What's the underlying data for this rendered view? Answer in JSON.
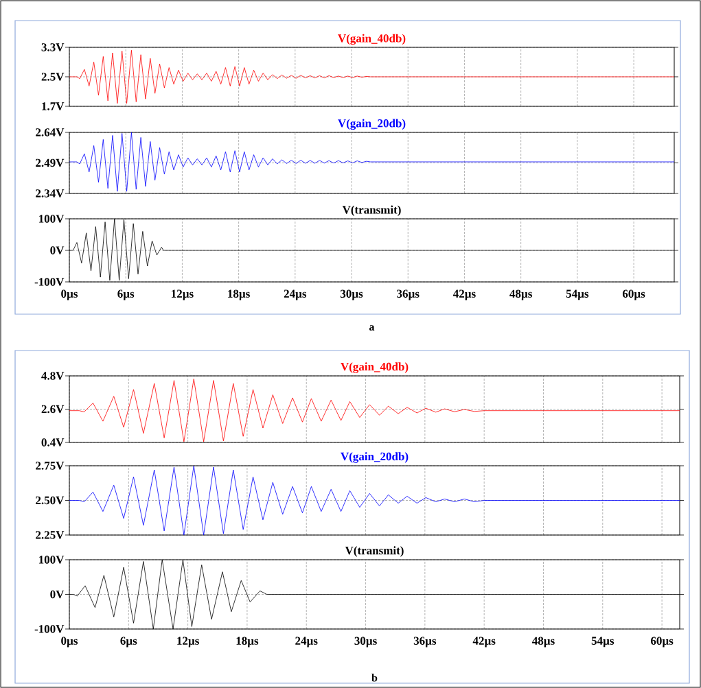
{
  "chart_data": [
    {
      "type": "line",
      "xlim": [
        0,
        64.3
      ],
      "ylim": [
        1.7,
        3.3
      ],
      "grid": true,
      "tick_labels": "y",
      "xticks": [
        {
          "value": 0,
          "label": null
        },
        {
          "value": 6,
          "label": null
        },
        {
          "value": 12,
          "label": null
        },
        {
          "value": 18,
          "label": null
        },
        {
          "value": 24,
          "label": null
        },
        {
          "value": 30,
          "label": null
        },
        {
          "value": 36,
          "label": null
        },
        {
          "value": 42,
          "label": null
        },
        {
          "value": 48,
          "label": null
        },
        {
          "value": 54,
          "label": null
        },
        {
          "value": 60,
          "label": null
        }
      ],
      "yticks": [
        {
          "value": 1.7,
          "label": "1.7V"
        },
        {
          "value": 2.5,
          "label": "2.5V"
        },
        {
          "value": 3.3,
          "label": "3.3V"
        }
      ],
      "series": [
        {
          "name": "V(gain_40db)",
          "color": "#ff0000",
          "x": [
            0,
            0.8,
            1.1,
            1.6,
            2.1,
            2.6,
            3.1,
            3.6,
            4.1,
            4.6,
            5.1,
            5.6,
            6.1,
            6.6,
            7.1,
            7.6,
            8.1,
            8.6,
            9.1,
            9.6,
            10.1,
            10.6,
            11.1,
            11.6,
            12.1,
            12.6,
            13.1,
            13.6,
            14.1,
            14.6,
            15.1,
            15.6,
            16.1,
            16.6,
            17.1,
            17.6,
            18.1,
            18.6,
            19.1,
            19.6,
            20.1,
            20.6,
            21.1,
            21.6,
            22.1,
            22.6,
            23.1,
            23.6,
            24.1,
            24.6,
            25.1,
            25.6,
            26.1,
            26.6,
            27.1,
            27.6,
            28.1,
            28.6,
            29.1,
            29.6,
            30.1,
            30.6,
            31.1,
            31.6,
            32,
            64.3
          ],
          "values": [
            2.5,
            2.5,
            2.45,
            2.7,
            2.25,
            2.9,
            2.0,
            3.05,
            1.85,
            3.15,
            1.78,
            3.2,
            1.78,
            3.22,
            1.82,
            3.1,
            1.9,
            3.0,
            2.05,
            2.85,
            2.2,
            2.75,
            2.3,
            2.68,
            2.38,
            2.6,
            2.42,
            2.58,
            2.42,
            2.6,
            2.38,
            2.65,
            2.3,
            2.75,
            2.25,
            2.78,
            2.25,
            2.75,
            2.3,
            2.68,
            2.38,
            2.6,
            2.42,
            2.56,
            2.45,
            2.55,
            2.46,
            2.54,
            2.46,
            2.54,
            2.47,
            2.53,
            2.47,
            2.53,
            2.47,
            2.53,
            2.48,
            2.52,
            2.48,
            2.52,
            2.48,
            2.52,
            2.49,
            2.51,
            2.5,
            2.5
          ]
        }
      ]
    },
    {
      "type": "line",
      "xlim": [
        0,
        64.3
      ],
      "ylim": [
        2.34,
        2.64
      ],
      "grid": true,
      "tick_labels": "y",
      "xticks": [
        {
          "value": 0,
          "label": null
        },
        {
          "value": 6,
          "label": null
        },
        {
          "value": 12,
          "label": null
        },
        {
          "value": 18,
          "label": null
        },
        {
          "value": 24,
          "label": null
        },
        {
          "value": 30,
          "label": null
        },
        {
          "value": 36,
          "label": null
        },
        {
          "value": 42,
          "label": null
        },
        {
          "value": 48,
          "label": null
        },
        {
          "value": 54,
          "label": null
        },
        {
          "value": 60,
          "label": null
        }
      ],
      "yticks": [
        {
          "value": 2.34,
          "label": "2.34V"
        },
        {
          "value": 2.49,
          "label": "2.49V"
        },
        {
          "value": 2.64,
          "label": "2.64V"
        }
      ],
      "series": [
        {
          "name": "V(gain_20db)",
          "color": "#0000ff",
          "x": [
            0,
            0.8,
            1.1,
            1.6,
            2.1,
            2.6,
            3.1,
            3.6,
            4.1,
            4.6,
            5.1,
            5.6,
            6.1,
            6.6,
            7.1,
            7.6,
            8.1,
            8.6,
            9.1,
            9.6,
            10.1,
            10.6,
            11.1,
            11.6,
            12.1,
            12.6,
            13.1,
            13.6,
            14.1,
            14.6,
            15.1,
            15.6,
            16.1,
            16.6,
            17.1,
            17.6,
            18.1,
            18.6,
            19.1,
            19.6,
            20.1,
            20.6,
            21.1,
            21.6,
            22.1,
            22.6,
            23.1,
            23.6,
            24.1,
            24.6,
            25.1,
            25.6,
            26.1,
            26.6,
            27.1,
            27.6,
            28.1,
            28.6,
            29.1,
            29.6,
            30.1,
            30.6,
            31.1,
            31.6,
            32,
            64.3
          ],
          "values": [
            2.495,
            2.495,
            2.485,
            2.535,
            2.445,
            2.575,
            2.395,
            2.605,
            2.365,
            2.625,
            2.35,
            2.635,
            2.35,
            2.64,
            2.36,
            2.615,
            2.375,
            2.595,
            2.405,
            2.565,
            2.435,
            2.545,
            2.455,
            2.53,
            2.47,
            2.515,
            2.48,
            2.51,
            2.48,
            2.515,
            2.47,
            2.525,
            2.455,
            2.545,
            2.445,
            2.55,
            2.445,
            2.545,
            2.455,
            2.53,
            2.47,
            2.515,
            2.48,
            2.51,
            2.485,
            2.505,
            2.487,
            2.503,
            2.487,
            2.503,
            2.488,
            2.502,
            2.488,
            2.502,
            2.489,
            2.501,
            2.489,
            2.501,
            2.49,
            2.5,
            2.49,
            2.5,
            2.492,
            2.498,
            2.495,
            2.495
          ]
        }
      ]
    },
    {
      "type": "line",
      "xlim": [
        0,
        64.3
      ],
      "ylim": [
        -100,
        100
      ],
      "grid": true,
      "annotations": [
        "a"
      ],
      "xticks": [
        {
          "value": 0,
          "label": "0µs"
        },
        {
          "value": 6,
          "label": "6µs"
        },
        {
          "value": 12,
          "label": "12µs"
        },
        {
          "value": 18,
          "label": "18µs"
        },
        {
          "value": 24,
          "label": "24µs"
        },
        {
          "value": 30,
          "label": "30µs"
        },
        {
          "value": 36,
          "label": "36µs"
        },
        {
          "value": 42,
          "label": "42µs"
        },
        {
          "value": 48,
          "label": "48µs"
        },
        {
          "value": 54,
          "label": "54µs"
        },
        {
          "value": 60,
          "label": "60µs"
        }
      ],
      "yticks": [
        {
          "value": -100,
          "label": "-100V"
        },
        {
          "value": 0,
          "label": "0V"
        },
        {
          "value": 100,
          "label": "100V"
        }
      ],
      "series": [
        {
          "name": "V(transmit)",
          "color": "#000000",
          "x": [
            0,
            0.4,
            0.8,
            1.3,
            1.8,
            2.3,
            2.8,
            3.3,
            3.8,
            4.3,
            4.8,
            5.3,
            5.8,
            6.3,
            6.8,
            7.3,
            7.8,
            8.3,
            8.8,
            9.3,
            9.8,
            10.0,
            64.3
          ],
          "values": [
            0,
            0,
            25,
            -40,
            55,
            -65,
            75,
            -85,
            90,
            -95,
            100,
            -95,
            98,
            -90,
            85,
            -75,
            60,
            -50,
            30,
            -15,
            10,
            0,
            0
          ]
        }
      ]
    },
    {
      "type": "line",
      "xlim": [
        0,
        61.8
      ],
      "ylim": [
        0.4,
        4.8
      ],
      "grid": true,
      "tick_labels": "y",
      "xticks": [
        {
          "value": 0,
          "label": null
        },
        {
          "value": 6,
          "label": null
        },
        {
          "value": 12,
          "label": null
        },
        {
          "value": 18,
          "label": null
        },
        {
          "value": 24,
          "label": null
        },
        {
          "value": 30,
          "label": null
        },
        {
          "value": 36,
          "label": null
        },
        {
          "value": 42,
          "label": null
        },
        {
          "value": 48,
          "label": null
        },
        {
          "value": 54,
          "label": null
        },
        {
          "value": 60,
          "label": null
        }
      ],
      "yticks": [
        {
          "value": 0.4,
          "label": "0.4V"
        },
        {
          "value": 2.6,
          "label": "2.6V"
        },
        {
          "value": 4.8,
          "label": "4.8V"
        }
      ],
      "series": [
        {
          "name": "V(gain_40db)",
          "color": "#ff0000",
          "x": [
            0,
            1.0,
            1.5,
            2.4,
            3.4,
            4.5,
            5.5,
            6.5,
            7.5,
            8.6,
            9.6,
            10.6,
            11.6,
            12.6,
            13.6,
            14.6,
            15.6,
            16.6,
            17.6,
            18.6,
            19.6,
            20.6,
            21.6,
            22.6,
            23.6,
            24.5,
            25.5,
            26.5,
            27.5,
            28.4,
            29.4,
            30.4,
            31.4,
            32.3,
            33.3,
            34.2,
            35.2,
            36.1,
            37.1,
            38.0,
            39.0,
            40.0,
            41.0,
            42,
            61.8
          ],
          "values": [
            2.5,
            2.5,
            2.42,
            3.0,
            1.8,
            3.45,
            1.4,
            3.9,
            1.0,
            4.3,
            0.7,
            4.5,
            0.45,
            4.6,
            0.45,
            4.5,
            0.5,
            4.3,
            0.8,
            3.9,
            1.35,
            3.55,
            1.65,
            3.35,
            1.75,
            3.3,
            1.8,
            3.2,
            1.85,
            3.1,
            2.05,
            2.9,
            2.2,
            2.8,
            2.3,
            2.72,
            2.35,
            2.66,
            2.4,
            2.62,
            2.43,
            2.58,
            2.45,
            2.5,
            2.5
          ]
        }
      ]
    },
    {
      "type": "line",
      "xlim": [
        0,
        61.8
      ],
      "ylim": [
        2.25,
        2.75
      ],
      "grid": true,
      "tick_labels": "y",
      "xticks": [
        {
          "value": 0,
          "label": null
        },
        {
          "value": 6,
          "label": null
        },
        {
          "value": 12,
          "label": null
        },
        {
          "value": 18,
          "label": null
        },
        {
          "value": 24,
          "label": null
        },
        {
          "value": 30,
          "label": null
        },
        {
          "value": 36,
          "label": null
        },
        {
          "value": 42,
          "label": null
        },
        {
          "value": 48,
          "label": null
        },
        {
          "value": 54,
          "label": null
        },
        {
          "value": 60,
          "label": null
        }
      ],
      "yticks": [
        {
          "value": 2.25,
          "label": "2.25V"
        },
        {
          "value": 2.5,
          "label": "2.50V"
        },
        {
          "value": 2.75,
          "label": "2.75V"
        }
      ],
      "series": [
        {
          "name": "V(gain_20db)",
          "color": "#0000ff",
          "x": [
            0,
            1.0,
            1.5,
            2.4,
            3.4,
            4.5,
            5.5,
            6.5,
            7.5,
            8.6,
            9.6,
            10.6,
            11.6,
            12.6,
            13.6,
            14.6,
            15.6,
            16.6,
            17.6,
            18.6,
            19.6,
            20.6,
            21.6,
            22.6,
            23.6,
            24.5,
            25.5,
            26.5,
            27.5,
            28.4,
            29.4,
            30.4,
            31.4,
            32.3,
            33.3,
            34.2,
            35.2,
            36.1,
            37.1,
            38.0,
            39.0,
            40.0,
            41.0,
            42,
            61.8
          ],
          "values": [
            2.5,
            2.5,
            2.49,
            2.56,
            2.42,
            2.61,
            2.37,
            2.67,
            2.32,
            2.72,
            2.28,
            2.74,
            2.25,
            2.75,
            2.25,
            2.74,
            2.26,
            2.72,
            2.29,
            2.67,
            2.36,
            2.63,
            2.4,
            2.6,
            2.41,
            2.6,
            2.42,
            2.58,
            2.42,
            2.57,
            2.45,
            2.55,
            2.46,
            2.54,
            2.48,
            2.53,
            2.48,
            2.52,
            2.49,
            2.51,
            2.49,
            2.51,
            2.49,
            2.5,
            2.5
          ]
        }
      ]
    },
    {
      "type": "line",
      "xlim": [
        0,
        61.8
      ],
      "ylim": [
        -100,
        100
      ],
      "grid": true,
      "annotations": [
        "b"
      ],
      "xticks": [
        {
          "value": 0,
          "label": "0µs"
        },
        {
          "value": 6,
          "label": "6µs"
        },
        {
          "value": 12,
          "label": "12µs"
        },
        {
          "value": 18,
          "label": "18µs"
        },
        {
          "value": 24,
          "label": "24µs"
        },
        {
          "value": 30,
          "label": "30µs"
        },
        {
          "value": 36,
          "label": "36µs"
        },
        {
          "value": 42,
          "label": "42µs"
        },
        {
          "value": 48,
          "label": "48µs"
        },
        {
          "value": 54,
          "label": "54µs"
        },
        {
          "value": 60,
          "label": "60µs"
        }
      ],
      "yticks": [
        {
          "value": -100,
          "label": "-100V"
        },
        {
          "value": 0,
          "label": "0V"
        },
        {
          "value": 100,
          "label": "100V"
        }
      ],
      "series": [
        {
          "name": "V(transmit)",
          "color": "#000000",
          "x": [
            0,
            0.4,
            0.8,
            1.6,
            2.6,
            3.5,
            4.5,
            5.5,
            6.5,
            7.5,
            8.5,
            9.4,
            10.5,
            11.5,
            12.4,
            13.4,
            14.4,
            15.5,
            16.4,
            17.4,
            18.3,
            19.3,
            20.0,
            61.8
          ],
          "values": [
            0,
            0,
            -5,
            25,
            -38,
            55,
            -65,
            78,
            -83,
            95,
            -100,
            100,
            -100,
            100,
            -93,
            85,
            -72,
            65,
            -50,
            40,
            -22,
            10,
            0,
            0
          ]
        }
      ]
    }
  ]
}
